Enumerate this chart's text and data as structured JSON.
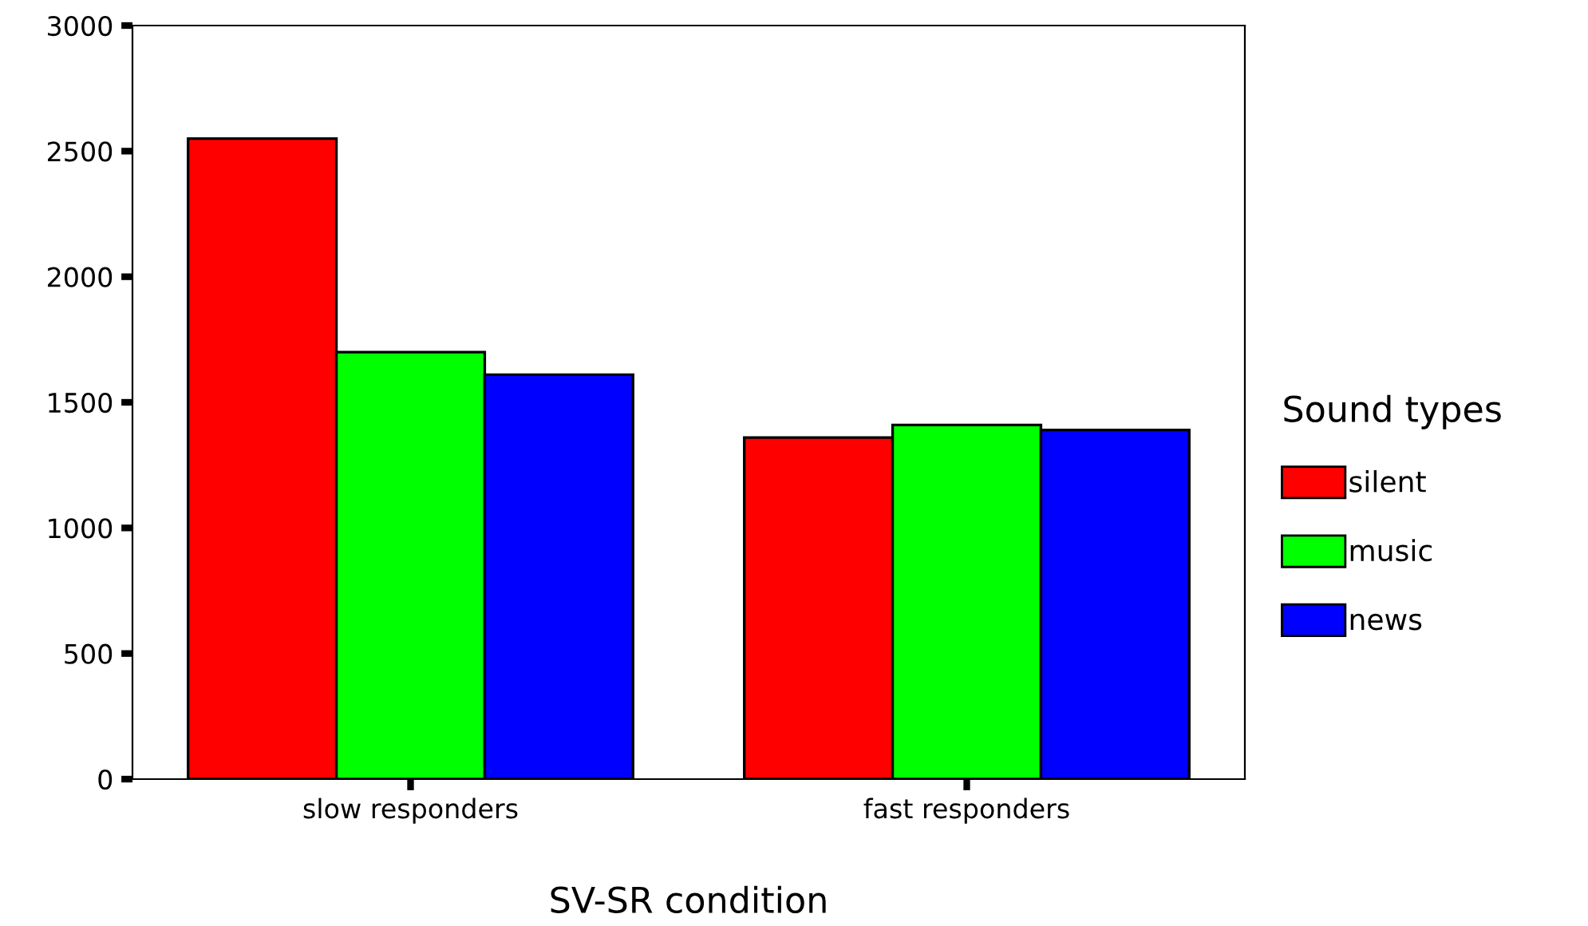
{
  "chart_data": {
    "type": "bar",
    "xlabel": "SV-SR condition",
    "legend_title": "Sound types",
    "legend": "right",
    "grid": false,
    "categories": [
      "slow responders",
      "fast responders"
    ],
    "series": [
      {
        "name": "silent",
        "color": "#ff0000",
        "values": [
          2550,
          1360
        ]
      },
      {
        "name": "music",
        "color": "#00ff00",
        "values": [
          1700,
          1410
        ]
      },
      {
        "name": "news",
        "color": "#0000ff",
        "values": [
          1610,
          1390
        ]
      }
    ],
    "ylim": [
      0,
      3000
    ],
    "yticks": [
      0,
      500,
      1000,
      1500,
      2000,
      2500,
      3000
    ]
  }
}
